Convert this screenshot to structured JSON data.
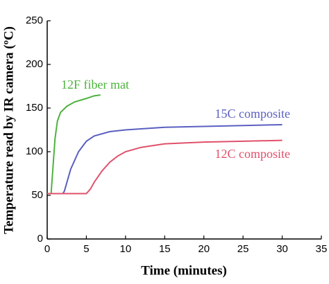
{
  "chart_data": {
    "type": "line",
    "x_label": "Time (minutes)",
    "y_label": "Temperature read by IR camera (ºC)",
    "xlim": [
      0,
      35
    ],
    "xticks": [
      0,
      5,
      10,
      15,
      20,
      25,
      30,
      35
    ],
    "ylim": [
      0,
      250
    ],
    "yticks": [
      0,
      50,
      100,
      150,
      200,
      250
    ],
    "series": [
      {
        "name": "12F fiber mat",
        "color": "#4db33d",
        "x": [
          0.5,
          0.8,
          1.0,
          1.3,
          1.7,
          2.5,
          3.5,
          5,
          6,
          6.8
        ],
        "values": [
          52,
          90,
          115,
          135,
          145,
          152,
          157,
          161,
          164,
          165
        ]
      },
      {
        "name": "15C composite",
        "color": "#5a5fc0",
        "x": [
          0,
          2,
          2.2,
          3,
          4,
          5,
          6,
          8,
          10,
          15,
          20,
          25,
          30
        ],
        "values": [
          52,
          52,
          55,
          80,
          100,
          112,
          118,
          123,
          125,
          128,
          129,
          130,
          131
        ]
      },
      {
        "name": "12C composite",
        "color": "#e0506a",
        "x": [
          0,
          5,
          5.5,
          6,
          7,
          8,
          9,
          10,
          12,
          15,
          20,
          25,
          30
        ],
        "values": [
          52,
          52,
          57,
          65,
          78,
          88,
          95,
          100,
          105,
          109,
          111,
          112,
          113
        ]
      }
    ]
  }
}
